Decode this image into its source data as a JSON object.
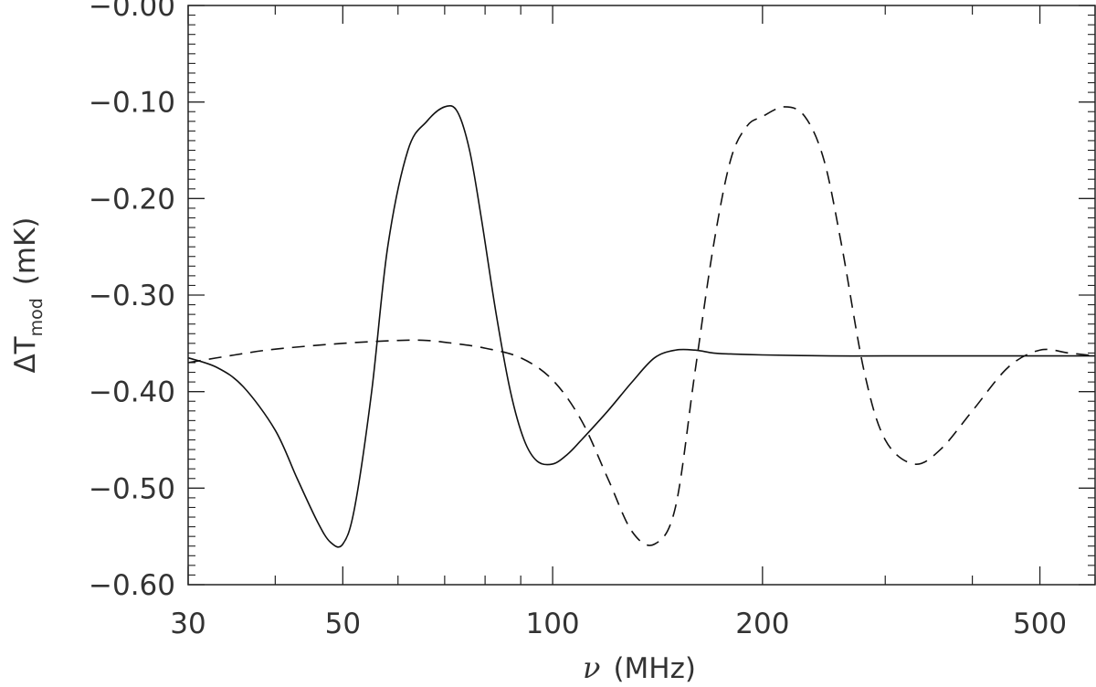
{
  "chart_data": {
    "type": "line",
    "x_scale": "log",
    "xlim": [
      30,
      600
    ],
    "ylim": [
      -0.6,
      0.0
    ],
    "x_ticks": [
      {
        "value": 30,
        "label": "30"
      },
      {
        "value": 50,
        "label": "50"
      },
      {
        "value": 100,
        "label": "100"
      },
      {
        "value": 200,
        "label": "200"
      },
      {
        "value": 500,
        "label": "500"
      }
    ],
    "y_ticks": [
      {
        "value": 0.0,
        "label": "−0.00"
      },
      {
        "value": -0.1,
        "label": "−0.10"
      },
      {
        "value": -0.2,
        "label": "−0.20"
      },
      {
        "value": -0.3,
        "label": "−0.30"
      },
      {
        "value": -0.4,
        "label": "−0.40"
      },
      {
        "value": -0.5,
        "label": "−0.50"
      },
      {
        "value": -0.6,
        "label": "−0.60"
      }
    ],
    "xlabel": {
      "symbol": "ν",
      "unit": "(MHz)"
    },
    "ylabel": {
      "main": "ΔT",
      "sub": "mod",
      "unit": "(mK)"
    },
    "grid": false,
    "series": [
      {
        "style": "solid",
        "x": [
          30,
          33,
          36,
          40,
          43,
          46,
          48,
          50,
          52,
          55,
          58,
          62,
          66,
          70,
          73,
          76,
          79,
          83,
          87,
          91,
          95,
          100,
          105,
          110,
          120,
          130,
          140,
          150,
          160,
          170,
          180,
          200,
          250,
          300,
          400,
          500,
          600
        ],
        "y": [
          -0.365,
          -0.375,
          -0.395,
          -0.44,
          -0.49,
          -0.535,
          -0.556,
          -0.558,
          -0.52,
          -0.4,
          -0.25,
          -0.15,
          -0.12,
          -0.105,
          -0.11,
          -0.15,
          -0.22,
          -0.32,
          -0.4,
          -0.45,
          -0.472,
          -0.475,
          -0.465,
          -0.45,
          -0.42,
          -0.39,
          -0.365,
          -0.357,
          -0.357,
          -0.36,
          -0.361,
          -0.362,
          -0.363,
          -0.363,
          -0.363,
          -0.363,
          -0.363
        ]
      },
      {
        "style": "dashed",
        "x": [
          30,
          35,
          40,
          50,
          60,
          66,
          72,
          80,
          90,
          100,
          110,
          120,
          130,
          140,
          150,
          160,
          170,
          180,
          190,
          200,
          215,
          230,
          245,
          260,
          280,
          300,
          330,
          360,
          400,
          450,
          500,
          550,
          600
        ],
        "y": [
          -0.37,
          -0.362,
          -0.356,
          -0.35,
          -0.347,
          -0.347,
          -0.35,
          -0.355,
          -0.365,
          -0.388,
          -0.43,
          -0.49,
          -0.545,
          -0.558,
          -0.52,
          -0.38,
          -0.25,
          -0.16,
          -0.125,
          -0.115,
          -0.105,
          -0.115,
          -0.16,
          -0.25,
          -0.38,
          -0.45,
          -0.475,
          -0.46,
          -0.42,
          -0.375,
          -0.357,
          -0.36,
          -0.363
        ]
      }
    ]
  }
}
